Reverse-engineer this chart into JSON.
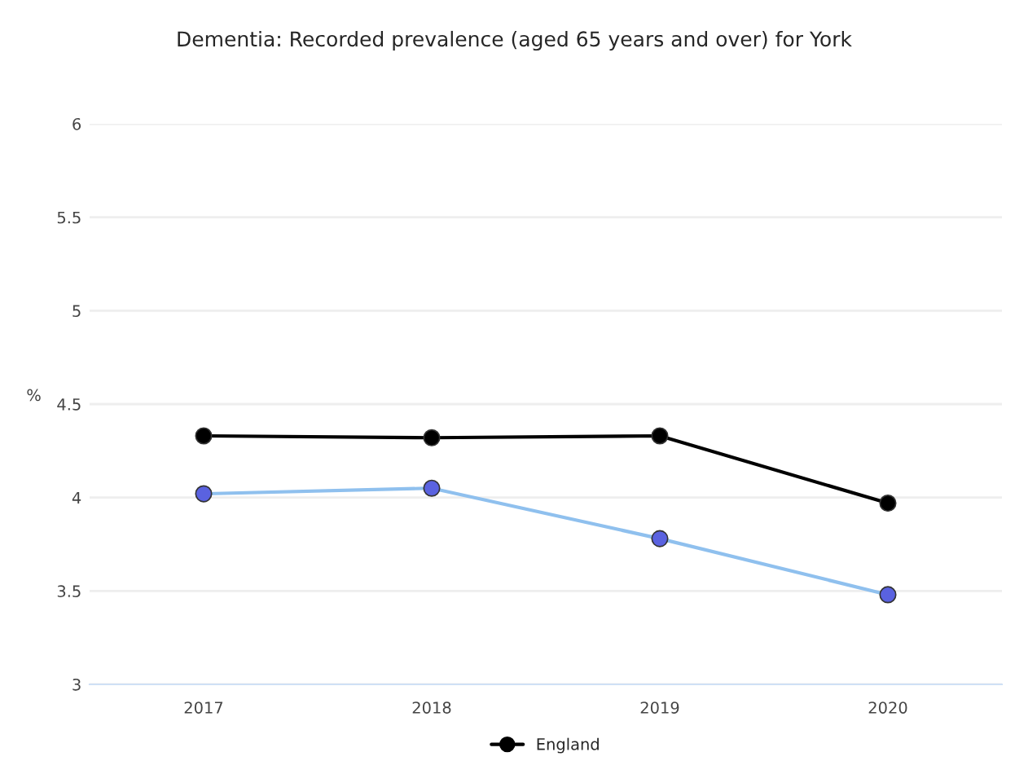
{
  "chart_data": {
    "type": "line",
    "title": "Dementia: Recorded prevalence (aged 65 years and over) for York",
    "ylabel": "%",
    "categories": [
      "2017",
      "2018",
      "2019",
      "2020"
    ],
    "series": [
      {
        "name": "England",
        "color": "#000000",
        "values": [
          4.33,
          4.32,
          4.33,
          3.97
        ]
      },
      {
        "color": "#5a62e0",
        "values": [
          4.02,
          4.05,
          3.78,
          3.48
        ]
      }
    ],
    "ylim": [
      3,
      6
    ],
    "yticks": [
      3,
      3.5,
      4,
      4.5,
      5,
      5.5,
      6
    ],
    "grid": "y",
    "legend": "bottom",
    "marker": "circle",
    "line_style": "solid"
  }
}
